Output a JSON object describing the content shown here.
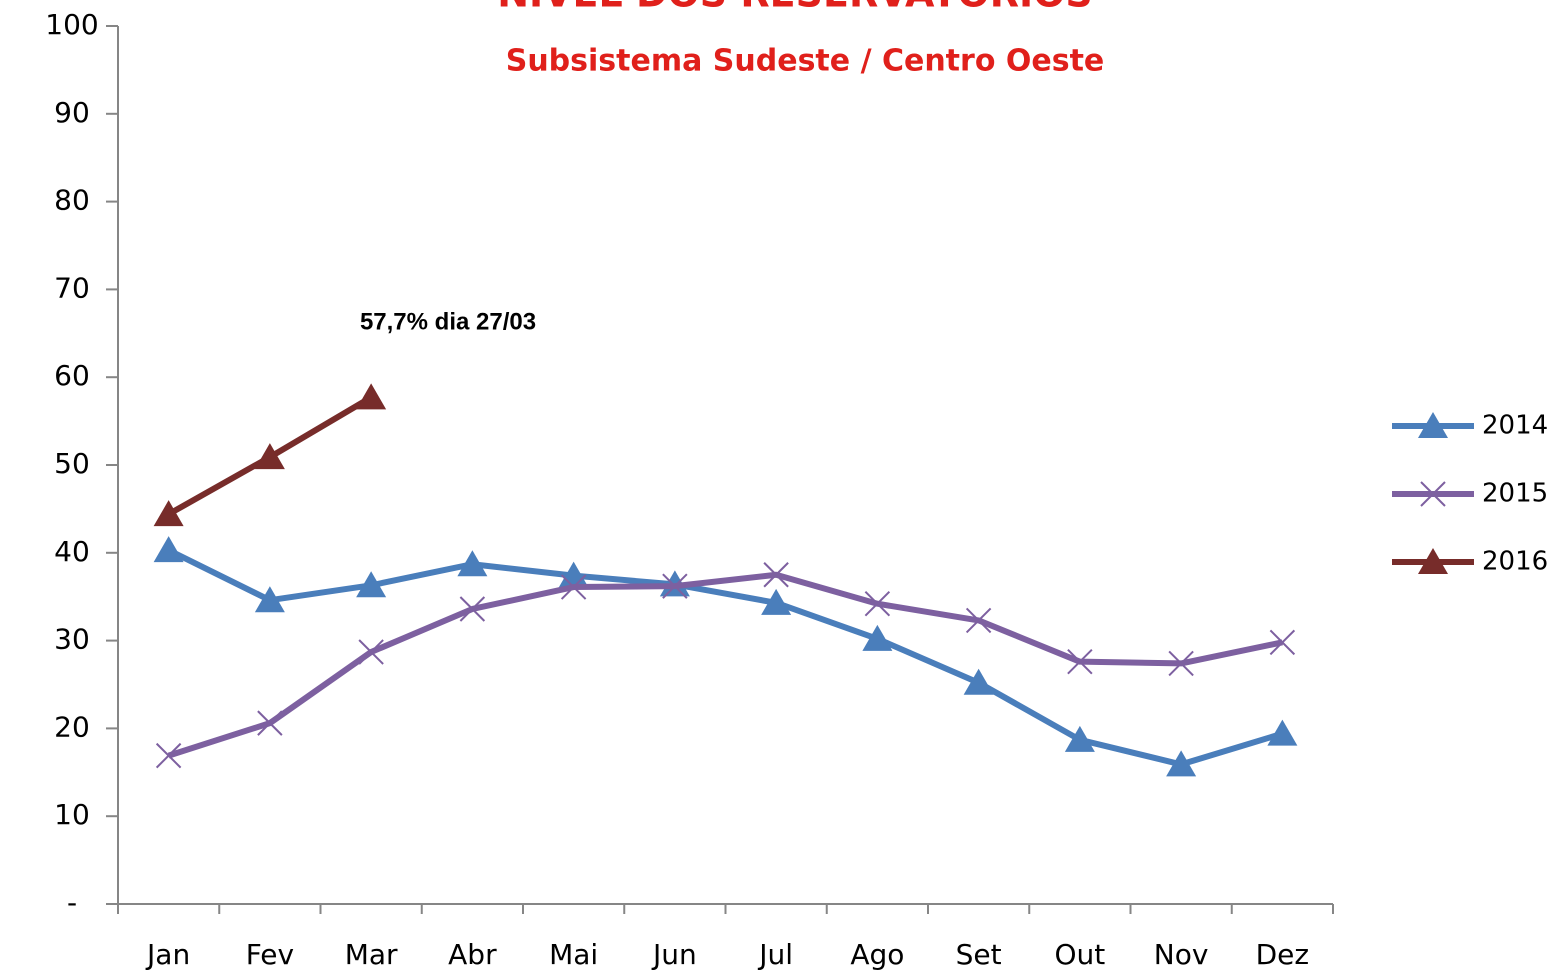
{
  "chart_data": {
    "type": "line",
    "title": "NÍVEL DOS RESERVATÓRIOS",
    "subtitle": "Subsistema Sudeste / Centro Oeste",
    "annotation": "57,7% dia 27/03",
    "categories": [
      "Jan",
      "Fev",
      "Mar",
      "Abr",
      "Mai",
      "Jun",
      "Jul",
      "Ago",
      "Set",
      "Out",
      "Nov",
      "Dez"
    ],
    "series": [
      {
        "name": "2014",
        "color": "#4a7ebb",
        "marker": "triangle",
        "values": [
          40.3,
          34.6,
          36.3,
          38.7,
          37.4,
          36.4,
          34.3,
          30.2,
          25.2,
          18.7,
          15.9,
          19.4
        ]
      },
      {
        "name": "2015",
        "color": "#7d60a0",
        "marker": "x",
        "values": [
          16.9,
          20.6,
          28.7,
          33.6,
          36.1,
          36.2,
          37.5,
          34.2,
          32.3,
          27.6,
          27.4,
          29.8
        ]
      },
      {
        "name": "2016",
        "color": "#772c2a",
        "marker": "triangle",
        "values": [
          44.4,
          50.9,
          57.7,
          null,
          null,
          null,
          null,
          null,
          null,
          null,
          null,
          null
        ]
      }
    ],
    "ylim": [
      0,
      100
    ],
    "yticks": [
      {
        "value": 0,
        "label": "-"
      },
      10,
      20,
      30,
      40,
      50,
      60,
      70,
      80,
      90,
      100
    ],
    "grid": false,
    "legend": "right"
  }
}
